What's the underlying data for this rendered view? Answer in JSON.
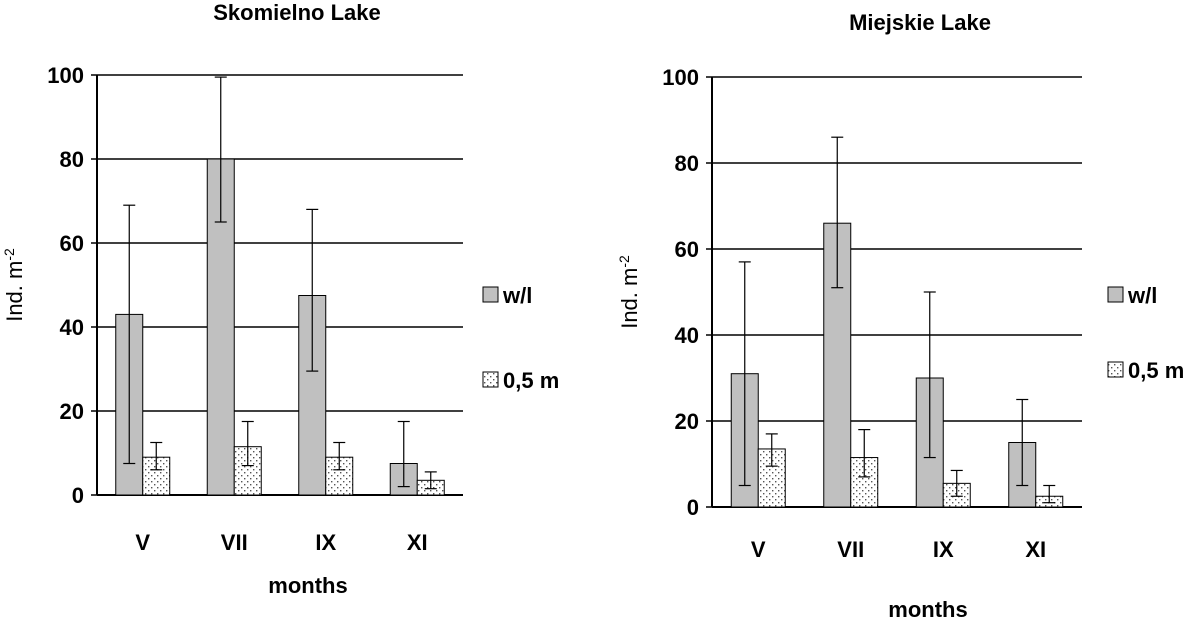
{
  "chart_data": [
    {
      "type": "bar",
      "title": "Skomielno Lake",
      "xlabel": "months",
      "ylabel": "Ind. m",
      "ylabel_sup": "-2",
      "categories": [
        "V",
        "VII",
        "IX",
        "XI"
      ],
      "ylim": [
        0,
        100
      ],
      "yticks": [
        "0",
        "20",
        "40",
        "60",
        "80",
        "100"
      ],
      "grid": true,
      "legend_position": "right",
      "series": [
        {
          "name": "w/l",
          "values": [
            43,
            80,
            47.5,
            7.5
          ],
          "error_low": [
            7.5,
            65,
            29.5,
            2
          ],
          "error_high": [
            69,
            99.5,
            68,
            17.5
          ],
          "fill": "#c0c0c0",
          "pattern": "solid"
        },
        {
          "name": "0,5 m",
          "values": [
            9,
            11.5,
            9,
            3.5
          ],
          "error_low": [
            6,
            7,
            6,
            1.5
          ],
          "error_high": [
            12.5,
            17.5,
            12.5,
            5.5
          ],
          "fill": "#ffffff",
          "pattern": "dotted"
        }
      ]
    },
    {
      "type": "bar",
      "title": "Miejskie Lake",
      "xlabel": "months",
      "ylabel": "Ind. m",
      "ylabel_sup": "-2",
      "categories": [
        "V",
        "VII",
        "IX",
        "XI"
      ],
      "ylim": [
        0,
        100
      ],
      "yticks": [
        "0",
        "20",
        "40",
        "60",
        "80",
        "100"
      ],
      "grid": true,
      "legend_position": "right",
      "series": [
        {
          "name": "w/l",
          "values": [
            31,
            66,
            30,
            15
          ],
          "error_low": [
            5,
            51,
            11.5,
            5
          ],
          "error_high": [
            57,
            86,
            50,
            25
          ],
          "fill": "#c0c0c0",
          "pattern": "solid"
        },
        {
          "name": "0,5 m",
          "values": [
            13.5,
            11.5,
            5.5,
            2.5
          ],
          "error_low": [
            9.5,
            7,
            2.5,
            1
          ],
          "error_high": [
            17,
            18,
            8.5,
            5
          ],
          "fill": "#ffffff",
          "pattern": "dotted"
        }
      ]
    }
  ]
}
